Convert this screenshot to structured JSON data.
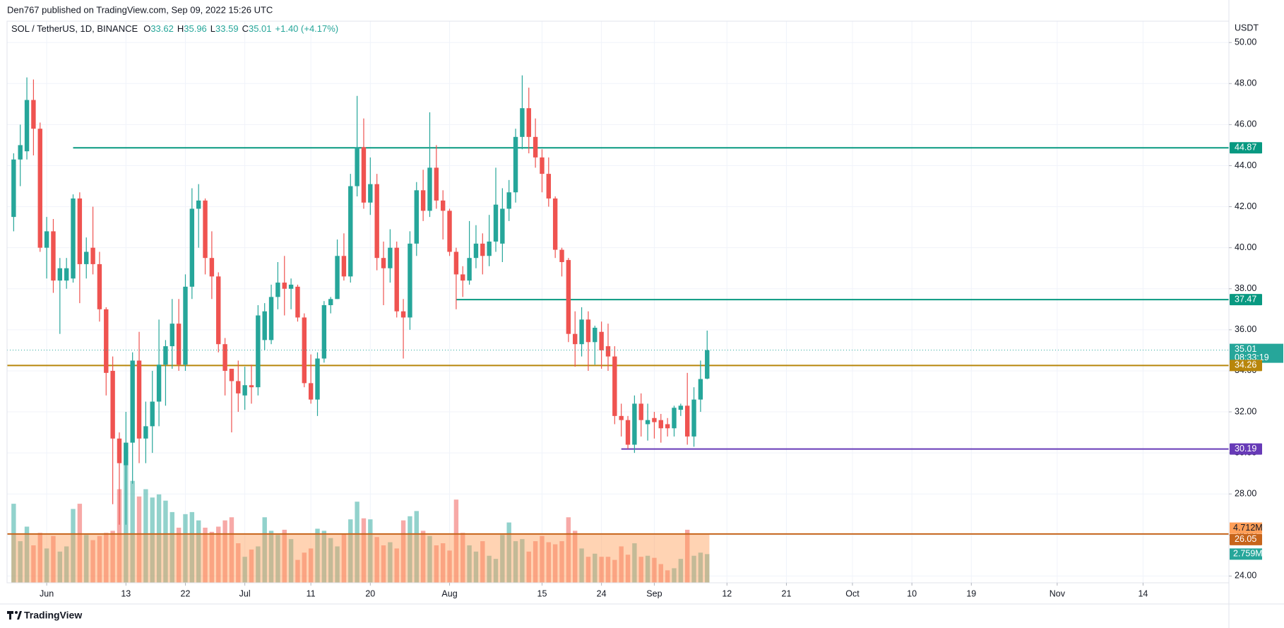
{
  "header": {
    "published": "Den767 published on TradingView.com, Sep 09, 2022 15:26 UTC"
  },
  "footer": {
    "brand": "TradingView"
  },
  "chart_data": {
    "type": "candlestick",
    "title": "SOL / TetherUS, 1D, BINANCE",
    "ohlc_legend": [
      {
        "key": "O",
        "value": 33.62
      },
      {
        "key": "H",
        "value": 35.96
      },
      {
        "key": "L",
        "value": 33.59
      },
      {
        "key": "C",
        "value": 35.01
      }
    ],
    "change": "+1.40 (+4.17%)",
    "y_unit": "USDT",
    "colors": {
      "up": "#26a69a",
      "down": "#ef5350"
    },
    "grid": true,
    "x": [
      "2022-05-27",
      "2022-05-28",
      "2022-05-29",
      "2022-05-30",
      "2022-05-31",
      "2022-06-01",
      "2022-06-02",
      "2022-06-03",
      "2022-06-04",
      "2022-06-05",
      "2022-06-06",
      "2022-06-07",
      "2022-06-08",
      "2022-06-09",
      "2022-06-10",
      "2022-06-11",
      "2022-06-12",
      "2022-06-13",
      "2022-06-14",
      "2022-06-15",
      "2022-06-16",
      "2022-06-17",
      "2022-06-18",
      "2022-06-19",
      "2022-06-20",
      "2022-06-21",
      "2022-06-22",
      "2022-06-23",
      "2022-06-24",
      "2022-06-25",
      "2022-06-26",
      "2022-06-27",
      "2022-06-28",
      "2022-06-29",
      "2022-06-30",
      "2022-07-01",
      "2022-07-02",
      "2022-07-03",
      "2022-07-04",
      "2022-07-05",
      "2022-07-06",
      "2022-07-07",
      "2022-07-08",
      "2022-07-09",
      "2022-07-10",
      "2022-07-11",
      "2022-07-12",
      "2022-07-13",
      "2022-07-14",
      "2022-07-15",
      "2022-07-16",
      "2022-07-17",
      "2022-07-18",
      "2022-07-19",
      "2022-07-20",
      "2022-07-21",
      "2022-07-22",
      "2022-07-23",
      "2022-07-24",
      "2022-07-25",
      "2022-07-26",
      "2022-07-27",
      "2022-07-28",
      "2022-07-29",
      "2022-07-30",
      "2022-07-31",
      "2022-08-01",
      "2022-08-02",
      "2022-08-03",
      "2022-08-04",
      "2022-08-05",
      "2022-08-06",
      "2022-08-07",
      "2022-08-08",
      "2022-08-09",
      "2022-08-10",
      "2022-08-11",
      "2022-08-12",
      "2022-08-13",
      "2022-08-14",
      "2022-08-15",
      "2022-08-16",
      "2022-08-17",
      "2022-08-18",
      "2022-08-19",
      "2022-08-20",
      "2022-08-21",
      "2022-08-22",
      "2022-08-23",
      "2022-08-24",
      "2022-08-25",
      "2022-08-26",
      "2022-08-27",
      "2022-08-28",
      "2022-08-29",
      "2022-08-30",
      "2022-08-31",
      "2022-09-01",
      "2022-09-02",
      "2022-09-03",
      "2022-09-04",
      "2022-09-05",
      "2022-09-06",
      "2022-09-07",
      "2022-09-08",
      "2022-09-09"
    ],
    "candles": [
      [
        41.5,
        44.6,
        40.8,
        44.3
      ],
      [
        44.3,
        46.0,
        43.0,
        45.0
      ],
      [
        44.7,
        48.3,
        44.3,
        47.2
      ],
      [
        47.2,
        48.2,
        44.5,
        45.8
      ],
      [
        45.8,
        46.1,
        39.8,
        40.0
      ],
      [
        40.0,
        41.5,
        38.5,
        40.8
      ],
      [
        40.8,
        41.4,
        37.8,
        38.4
      ],
      [
        38.4,
        39.5,
        35.8,
        39.0
      ],
      [
        38.4,
        39.5,
        38.0,
        39.0
      ],
      [
        38.5,
        42.6,
        38.3,
        42.4
      ],
      [
        42.4,
        42.7,
        37.3,
        39.2
      ],
      [
        39.2,
        40.5,
        38.5,
        39.8
      ],
      [
        40.0,
        42.0,
        38.7,
        39.2
      ],
      [
        39.2,
        39.8,
        36.4,
        37.0
      ],
      [
        37.0,
        37.1,
        32.8,
        33.9
      ],
      [
        34.0,
        34.7,
        27.5,
        30.7
      ],
      [
        30.7,
        31.0,
        26.5,
        29.5
      ],
      [
        29.4,
        32.0,
        26.5,
        30.5
      ],
      [
        30.5,
        34.9,
        28.5,
        34.5
      ],
      [
        34.5,
        35.9,
        29.5,
        30.7
      ],
      [
        30.7,
        32.5,
        29.5,
        31.3
      ],
      [
        31.3,
        34.0,
        30.0,
        32.5
      ],
      [
        32.5,
        36.5,
        31.3,
        34.3
      ],
      [
        34.3,
        35.5,
        32.3,
        35.2
      ],
      [
        35.2,
        37.5,
        34.1,
        36.3
      ],
      [
        36.3,
        37.5,
        34.0,
        34.3
      ],
      [
        34.3,
        38.7,
        34.0,
        38.1
      ],
      [
        38.1,
        42.9,
        37.5,
        41.9
      ],
      [
        41.9,
        43.1,
        40.0,
        42.3
      ],
      [
        42.3,
        42.4,
        38.7,
        39.5
      ],
      [
        39.5,
        40.8,
        37.5,
        38.6
      ],
      [
        38.6,
        38.8,
        34.9,
        35.3
      ],
      [
        35.3,
        35.6,
        32.8,
        34.0
      ],
      [
        34.1,
        34.1,
        31.0,
        33.5
      ],
      [
        33.5,
        34.5,
        32.0,
        32.9
      ],
      [
        32.8,
        34.2,
        32.1,
        33.3
      ],
      [
        33.3,
        34.3,
        32.4,
        33.2
      ],
      [
        33.2,
        37.2,
        32.8,
        36.7
      ],
      [
        35.5,
        37.3,
        35.0,
        36.9
      ],
      [
        35.5,
        38.2,
        35.3,
        37.6
      ],
      [
        37.6,
        39.3,
        37.0,
        38.3
      ],
      [
        38.3,
        39.6,
        36.7,
        38.0
      ],
      [
        38.0,
        38.5,
        37.0,
        38.2
      ],
      [
        38.1,
        38.2,
        36.4,
        36.6
      ],
      [
        36.6,
        36.8,
        33.2,
        33.4
      ],
      [
        33.4,
        34.8,
        32.4,
        32.6
      ],
      [
        32.6,
        34.9,
        31.8,
        34.6
      ],
      [
        34.6,
        37.4,
        34.4,
        37.2
      ],
      [
        37.2,
        37.6,
        36.8,
        37.5
      ],
      [
        37.5,
        40.4,
        37.5,
        39.6
      ],
      [
        39.6,
        40.7,
        38.4,
        38.6
      ],
      [
        38.6,
        43.6,
        38.3,
        43.0
      ],
      [
        43.0,
        47.4,
        42.5,
        44.9
      ],
      [
        44.9,
        46.3,
        41.9,
        42.2
      ],
      [
        42.2,
        44.4,
        41.6,
        43.1
      ],
      [
        43.1,
        43.6,
        38.9,
        39.5
      ],
      [
        39.5,
        40.3,
        37.2,
        39.0
      ],
      [
        39.0,
        40.9,
        38.3,
        40.0
      ],
      [
        40.0,
        40.3,
        36.6,
        36.9
      ],
      [
        36.9,
        37.5,
        34.6,
        36.6
      ],
      [
        36.6,
        40.8,
        36.0,
        40.2
      ],
      [
        40.2,
        43.2,
        39.6,
        42.8
      ],
      [
        42.8,
        43.8,
        41.3,
        41.8
      ],
      [
        41.8,
        46.6,
        41.5,
        43.9
      ],
      [
        43.9,
        45.0,
        41.9,
        42.3
      ],
      [
        42.3,
        42.8,
        40.4,
        41.8
      ],
      [
        41.8,
        41.9,
        39.6,
        39.8
      ],
      [
        39.8,
        40.0,
        37.0,
        38.7
      ],
      [
        38.7,
        39.1,
        37.6,
        38.4
      ],
      [
        38.4,
        41.3,
        38.2,
        39.5
      ],
      [
        39.5,
        41.1,
        39.0,
        40.2
      ],
      [
        40.2,
        40.7,
        38.7,
        39.6
      ],
      [
        39.6,
        41.6,
        39.1,
        40.3
      ],
      [
        40.3,
        43.9,
        39.8,
        42.1
      ],
      [
        40.2,
        42.9,
        39.3,
        41.9
      ],
      [
        41.9,
        43.3,
        41.3,
        42.7
      ],
      [
        42.7,
        45.8,
        42.2,
        45.4
      ],
      [
        45.4,
        48.4,
        44.8,
        46.8
      ],
      [
        46.8,
        47.8,
        44.6,
        45.4
      ],
      [
        45.4,
        46.3,
        43.9,
        44.4
      ],
      [
        44.4,
        44.8,
        42.7,
        43.6
      ],
      [
        43.6,
        44.4,
        42.0,
        42.4
      ],
      [
        42.4,
        42.5,
        39.5,
        39.9
      ],
      [
        39.9,
        40.0,
        38.6,
        39.3
      ],
      [
        39.4,
        39.5,
        35.4,
        35.8
      ],
      [
        35.8,
        36.9,
        34.2,
        35.3
      ],
      [
        35.3,
        37.1,
        34.7,
        36.5
      ],
      [
        36.5,
        36.9,
        34.0,
        35.4
      ],
      [
        35.4,
        36.2,
        34.3,
        36.1
      ],
      [
        35.9,
        36.4,
        34.1,
        35.0
      ],
      [
        35.2,
        36.3,
        34.0,
        34.7
      ],
      [
        34.7,
        35.2,
        31.4,
        31.8
      ],
      [
        31.8,
        32.4,
        30.8,
        31.6
      ],
      [
        31.6,
        31.8,
        30.2,
        30.4
      ],
      [
        30.4,
        32.8,
        30.0,
        32.4
      ],
      [
        32.4,
        32.9,
        30.8,
        31.6
      ],
      [
        31.4,
        32.4,
        30.6,
        31.6
      ],
      [
        31.7,
        32.0,
        30.7,
        31.5
      ],
      [
        31.6,
        31.9,
        30.5,
        31.2
      ],
      [
        31.4,
        31.7,
        30.8,
        31.2
      ],
      [
        31.2,
        32.3,
        30.8,
        32.2
      ],
      [
        32.1,
        32.4,
        31.8,
        32.3
      ],
      [
        32.3,
        33.9,
        30.4,
        30.8
      ],
      [
        30.8,
        33.2,
        30.3,
        32.6
      ],
      [
        32.6,
        34.5,
        32.0,
        33.6
      ],
      [
        33.62,
        35.96,
        33.59,
        35.01
      ]
    ],
    "countdown": "08:33:19",
    "volume": {
      "values": [
        7.6,
        4.0,
        5.4,
        3.6,
        4.8,
        3.3,
        4.5,
        3.0,
        3.5,
        7.1,
        7.6,
        4.6,
        4.1,
        4.5,
        4.8,
        5.0,
        9.0,
        11.8,
        9.8,
        8.3,
        9.0,
        8.2,
        8.5,
        7.9,
        6.8,
        5.3,
        6.6,
        6.8,
        6.0,
        5.3,
        4.9,
        5.4,
        6.0,
        6.3,
        3.8,
        2.5,
        3.2,
        3.5,
        6.3,
        5.0,
        4.6,
        5.1,
        4.2,
        2.2,
        2.9,
        3.3,
        5.2,
        5.0,
        4.3,
        3.5,
        4.7,
        6.1,
        7.8,
        6.2,
        6.1,
        4.4,
        3.6,
        3.9,
        3.3,
        6.0,
        6.4,
        6.9,
        5.0,
        4.5,
        3.6,
        3.8,
        3.1,
        8.0,
        4.8,
        3.6,
        3.0,
        4.0,
        2.6,
        2.3,
        4.6,
        5.8,
        4.0,
        4.2,
        3.0,
        4.0,
        4.5,
        3.9,
        3.7,
        4.0,
        6.3,
        5.0,
        3.3,
        2.5,
        2.8,
        2.5,
        2.5,
        2.2,
        3.5,
        2.7,
        3.8,
        2.5,
        2.6,
        2.4,
        1.8,
        1.2,
        1.4,
        2.3,
        5.1,
        2.6,
        2.9,
        2.759
      ],
      "last_label": "2.759M",
      "ma": 4.712,
      "ma_label": "4.712M",
      "ma_color": "#ff9e57",
      "ylim": [
        0,
        54
      ]
    },
    "levels": [
      {
        "value": 44.87,
        "color": "#089981",
        "start": "2022-06-05"
      },
      {
        "value": 37.47,
        "color": "#089981",
        "start": "2022-08-02"
      },
      {
        "value": 34.26,
        "color": "#b8860b",
        "start": "2022-05-26"
      },
      {
        "value": 30.19,
        "color": "#673ab7",
        "start": "2022-08-27"
      },
      {
        "value": 26.05,
        "color": "#c7651b",
        "start": "2022-05-26"
      }
    ],
    "ylim": [
      23.67,
      51.04
    ],
    "yticks": [
      {
        "value": 24,
        "label": "24.00"
      },
      {
        "value": 26,
        "label": "26.00"
      },
      {
        "value": 28,
        "label": "28.00"
      },
      {
        "value": 30,
        "label": "30.00"
      },
      {
        "value": 32,
        "label": "32.00"
      },
      {
        "value": 34,
        "label": "34.00"
      },
      {
        "value": 36,
        "label": "36.00"
      },
      {
        "value": 38,
        "label": "38.00"
      },
      {
        "value": 40,
        "label": "40.00"
      },
      {
        "value": 42,
        "label": "42.00"
      },
      {
        "value": 44,
        "label": "44.00"
      },
      {
        "value": 46,
        "label": "46.00"
      },
      {
        "value": 48,
        "label": "48.00"
      },
      {
        "value": 50,
        "label": "50.00"
      }
    ],
    "xlim": [
      "2022-05-26",
      "2022-11-27"
    ],
    "xticks": [
      {
        "value": "2022-06-01",
        "label": "Jun"
      },
      {
        "value": "2022-06-13",
        "label": "13"
      },
      {
        "value": "2022-06-22",
        "label": "22"
      },
      {
        "value": "2022-07-01",
        "label": "Jul"
      },
      {
        "value": "2022-07-11",
        "label": "11"
      },
      {
        "value": "2022-07-20",
        "label": "20"
      },
      {
        "value": "2022-08-01",
        "label": "Aug"
      },
      {
        "value": "2022-08-15",
        "label": "15"
      },
      {
        "value": "2022-08-24",
        "label": "24"
      },
      {
        "value": "2022-09-01",
        "label": "Sep"
      },
      {
        "value": "2022-09-12",
        "label": "12"
      },
      {
        "value": "2022-09-21",
        "label": "21"
      },
      {
        "value": "2022-10-01",
        "label": "Oct"
      },
      {
        "value": "2022-10-10",
        "label": "10"
      },
      {
        "value": "2022-10-19",
        "label": "19"
      },
      {
        "value": "2022-11-01",
        "label": "Nov"
      },
      {
        "value": "2022-11-14",
        "label": "14"
      }
    ]
  }
}
